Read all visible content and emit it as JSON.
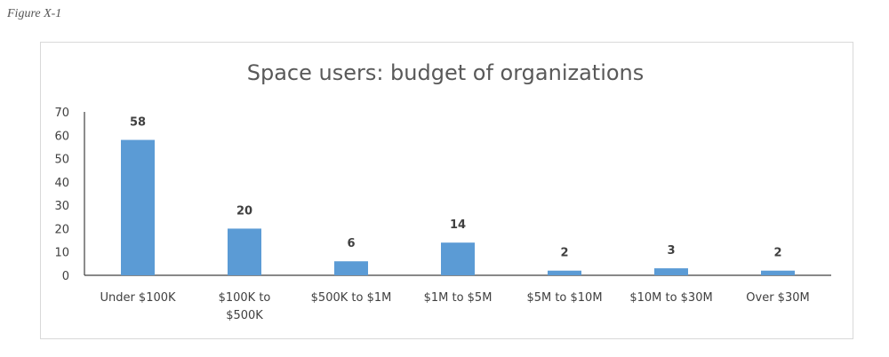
{
  "figure_label": "Figure X-1",
  "colors": {
    "bar": "#5b9bd5",
    "axis": "#404040",
    "text": "#404040",
    "title": "#595959"
  },
  "chart_data": {
    "type": "bar",
    "title": "Space users: budget of organizations",
    "categories": [
      [
        "Under $100K"
      ],
      [
        "$100K to",
        "$500K"
      ],
      [
        "$500K to $1M"
      ],
      [
        "$1M to $5M"
      ],
      [
        "$5M to $10M"
      ],
      [
        "$10M to $30M"
      ],
      [
        "Over $30M"
      ]
    ],
    "values": [
      58,
      20,
      6,
      14,
      2,
      3,
      2
    ],
    "ylim": [
      0,
      70
    ],
    "yticks": [
      0,
      10,
      20,
      30,
      40,
      50,
      60,
      70
    ],
    "xlabel": "",
    "ylabel": "",
    "grid": false,
    "legend": "none",
    "data_labels": true
  }
}
